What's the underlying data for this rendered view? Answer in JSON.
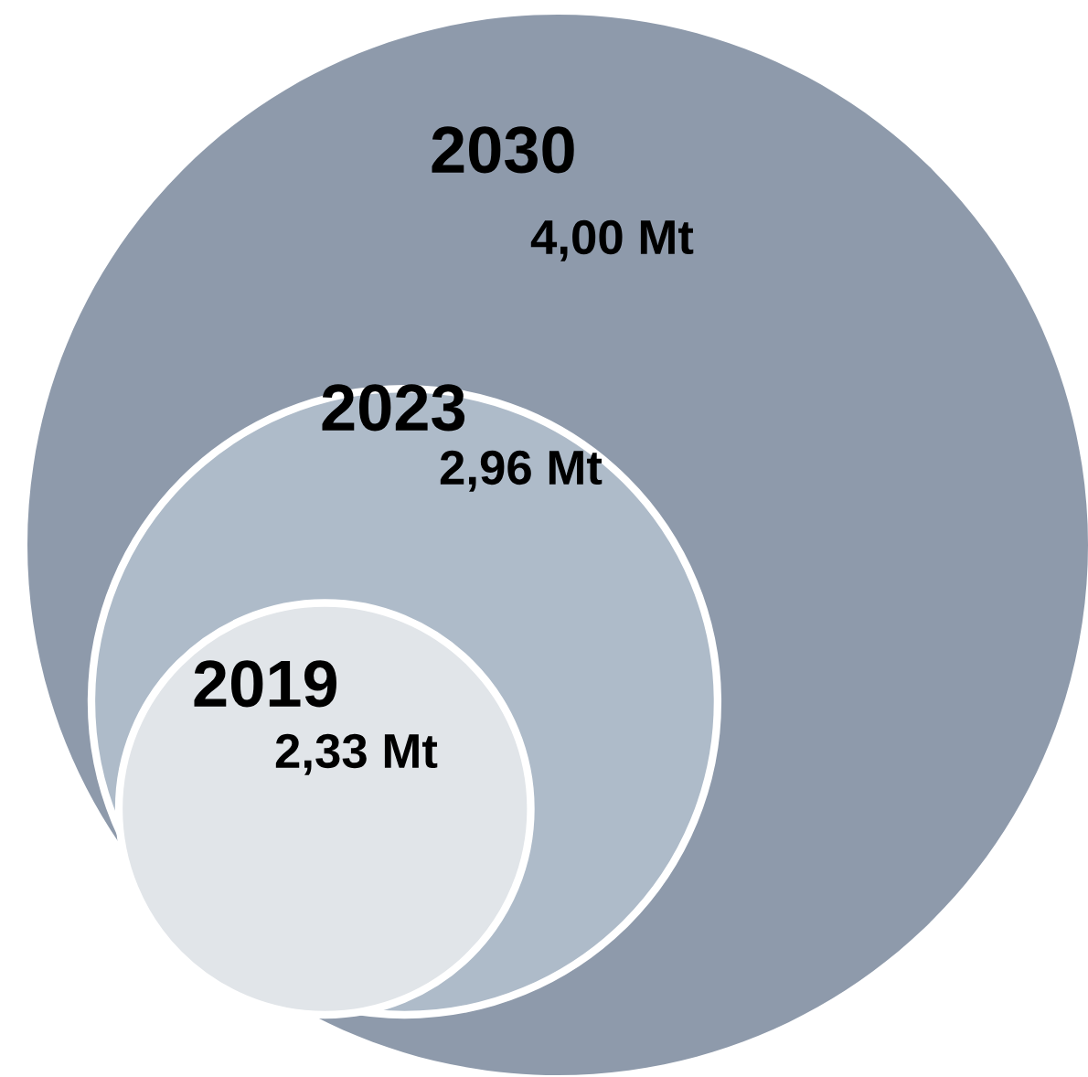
{
  "chart_data": {
    "type": "other",
    "categories": [
      "2030",
      "2023",
      "2019"
    ],
    "values": [
      4.0,
      2.96,
      2.33
    ],
    "value_labels": [
      "4,00 Mt",
      "2,96 Mt",
      "2,33 Mt"
    ],
    "colors": [
      "#8e9aab",
      "#aebbc9",
      "#e1e5e9"
    ]
  }
}
